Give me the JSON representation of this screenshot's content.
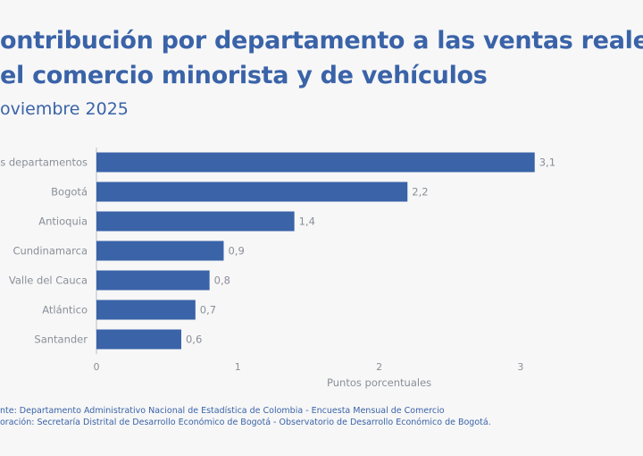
{
  "title_line1": "ontribución por departamento a las ventas reale",
  "title_line2": "el comercio minorista y de vehículos",
  "subtitle": "oviembre 2025",
  "source_line1": "nte: Departamento Administrativo Nacional de Estadística de Colombia - Encuesta Mensual de Comercio",
  "source_line2": "oración: Secretaría Distrital de Desarrollo Económico de Bogotá - Observatorio de Desarrollo Económico de Bogotá.",
  "colors": {
    "bar": "#3a63a8",
    "text": "#3a63a8",
    "axis_text": "#8a8f99"
  },
  "chart_data": {
    "type": "bar",
    "orientation": "horizontal",
    "categories": [
      "os departamentos",
      "Bogotá",
      "Antioquia",
      "Cundinamarca",
      "Valle del Cauca",
      "Atlántico",
      "Santander"
    ],
    "values": [
      3.1,
      2.2,
      1.4,
      0.9,
      0.8,
      0.7,
      0.6
    ],
    "data_labels": [
      "3,1",
      "2,2",
      "1,4",
      "0,9",
      "0,8",
      "0,7",
      "0,6"
    ],
    "xlabel": "Puntos porcentuales",
    "xticks": [
      "0",
      "1",
      "2",
      "3"
    ],
    "xlim": [
      0,
      4
    ],
    "grid": false
  }
}
